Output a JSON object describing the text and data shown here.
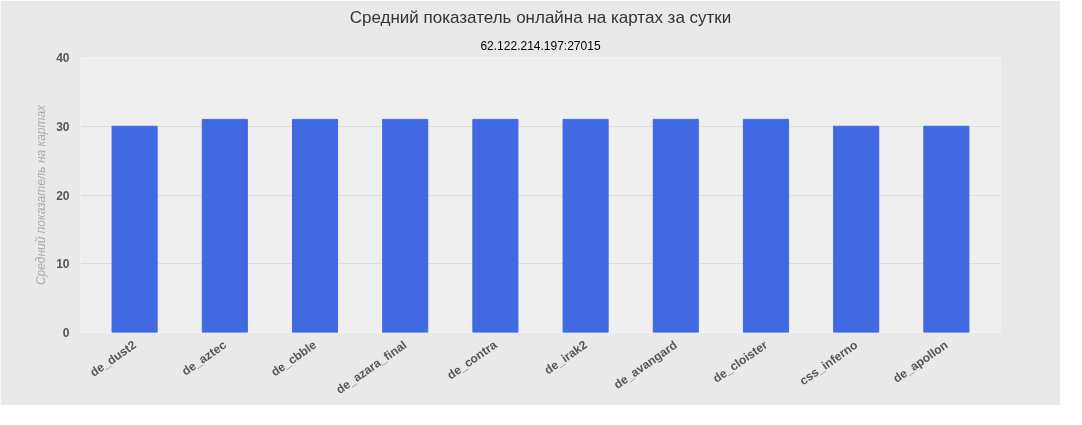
{
  "chart_data": {
    "type": "bar",
    "title": "Средний показатель онлайна на картах за сутки",
    "subtitle": "62.122.214.197:27015",
    "ylabel": "Средний показатель на картах",
    "categories": [
      "de_dust2",
      "de_aztec",
      "de_cbble",
      "de_azara_final",
      "de_contra",
      "de_irak2",
      "de_avangard",
      "de_cloister",
      "css_inferno",
      "de_apollon"
    ],
    "values": [
      30,
      31,
      31,
      31,
      31,
      31,
      31,
      31,
      30,
      30
    ],
    "color": "#4169e1",
    "ylim": [
      0,
      40
    ],
    "yticks": [
      0,
      10,
      20,
      30,
      40
    ],
    "grid": "y"
  }
}
